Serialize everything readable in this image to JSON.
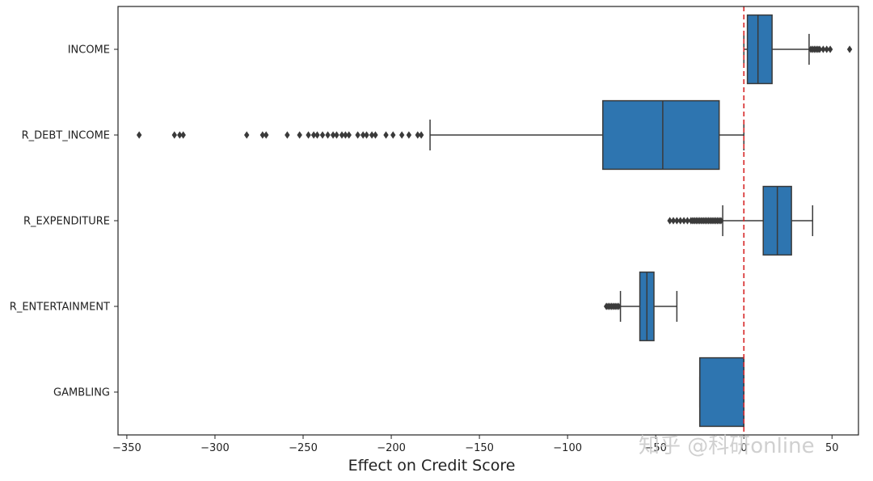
{
  "chart_data": {
    "type": "box",
    "orientation": "horizontal",
    "title": "",
    "xlabel": "Effect on Credit Score",
    "ylabel": "",
    "xlim": [
      -355,
      65
    ],
    "xticks": [
      -350,
      -300,
      -250,
      -200,
      -150,
      -100,
      -50,
      0,
      50
    ],
    "xtick_labels": [
      "−350",
      "−300",
      "−250",
      "−200",
      "−150",
      "−100",
      "−50",
      "0",
      "50"
    ],
    "reference_line": {
      "x": 0,
      "color": "#d62728",
      "style": "dashed"
    },
    "box_color": "#2e75b0",
    "line_color": "#3a3a3a",
    "grid": false,
    "categories": [
      "INCOME",
      "R_DEBT_INCOME",
      "R_EXPENDITURE",
      "R_ENTERTAINMENT",
      "GAMBLING"
    ],
    "boxes": [
      {
        "name": "INCOME",
        "whisker_low": 0,
        "q1": 2,
        "median": 8,
        "q3": 16,
        "whisker_high": 37,
        "outliers": [
          38,
          39,
          40,
          41,
          42,
          43,
          45,
          47,
          49,
          60
        ]
      },
      {
        "name": "R_DEBT_INCOME",
        "whisker_low": -178,
        "q1": -80,
        "median": -46,
        "q3": -14,
        "whisker_high": 0,
        "outliers": [
          -343,
          -323,
          -320,
          -318,
          -282,
          -273,
          -271,
          -259,
          -252,
          -247,
          -244,
          -242,
          -239,
          -236,
          -233,
          -231,
          -228,
          -226,
          -224,
          -219,
          -216,
          -214,
          -211,
          -209,
          -203,
          -199,
          -194,
          -190,
          -185,
          -183
        ]
      },
      {
        "name": "R_EXPENDITURE",
        "whisker_low": -12,
        "q1": 11,
        "median": 19,
        "q3": 27,
        "whisker_high": 39,
        "outliers": [
          -42,
          -40,
          -38,
          -36,
          -34,
          -32,
          -30,
          -29,
          -28,
          -27,
          -26,
          -25,
          -24,
          -23,
          -22,
          -21,
          -20,
          -19,
          -18,
          -17,
          -16,
          -15,
          -14,
          -13
        ]
      },
      {
        "name": "R_ENTERTAINMENT",
        "whisker_low": -70,
        "q1": -59,
        "median": -55,
        "q3": -51,
        "whisker_high": -38,
        "outliers": [
          -78,
          -77,
          -76,
          -75,
          -74,
          -73,
          -72,
          -71
        ]
      },
      {
        "name": "GAMBLING",
        "whisker_low": -25,
        "q1": -25,
        "median": -25,
        "q3": 0,
        "whisker_high": 0,
        "outliers": []
      }
    ]
  },
  "watermark": {
    "text": "知乎 @科研online"
  }
}
